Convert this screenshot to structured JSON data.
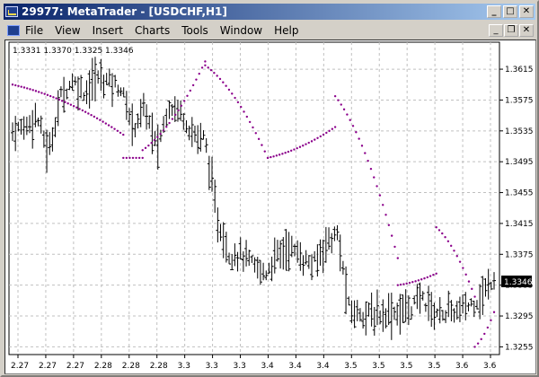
{
  "window": {
    "title": "29977: MetaTrader - [USDCHF,H1]",
    "minimize_glyph": "_",
    "maximize_glyph": "□",
    "close_glyph": "✕"
  },
  "menu": {
    "items": [
      "File",
      "View",
      "Insert",
      "Charts",
      "Tools",
      "Window",
      "Help"
    ],
    "mdi_minimize_glyph": "_",
    "mdi_restore_glyph": "❐",
    "mdi_close_glyph": "✕"
  },
  "colors": {
    "bars": "#000000",
    "sar": "#8b008b",
    "grid": "#c0c0c0",
    "price_tag_bg": "#000000",
    "price_tag_text": "#ffffff"
  },
  "chart_data": {
    "type": "ohlc-with-parabolic-sar",
    "symbol": "USDCHF",
    "timeframe": "H1",
    "ohlc_label": "1.3331 1.3370 1.3325 1.3346",
    "current_price": "1.3346",
    "y_ticks": [
      "1.3615",
      "1.3575",
      "1.3535",
      "1.3495",
      "1.3455",
      "1.3415",
      "1.3375",
      "1.3335",
      "1.3295",
      "1.3255"
    ],
    "y_range": [
      1.3245,
      1.365
    ],
    "x_ticks": [
      "2.27",
      "2.27",
      "2.27",
      "2.28",
      "2.28",
      "2.28",
      "3.3",
      "3.3",
      "3.3",
      "3.4",
      "3.4",
      "3.4",
      "3.5",
      "3.5",
      "3.5",
      "3.5",
      "3.6",
      "3.6"
    ],
    "close_anchor": [
      1.3535,
      1.354,
      1.3555,
      1.3505,
      1.358,
      1.36,
      1.3585,
      1.3605,
      1.36,
      1.359,
      1.354,
      1.3565,
      1.351,
      1.357,
      1.356,
      1.353,
      1.3525,
      1.342,
      1.3375,
      1.3375,
      1.336,
      1.335,
      1.3375,
      1.3385,
      1.337,
      1.336,
      1.339,
      1.34,
      1.33,
      1.33,
      1.3295,
      1.33,
      1.33,
      1.3305,
      1.332,
      1.33,
      1.33,
      1.33,
      1.331,
      1.332,
      1.3346
    ],
    "sar_segments": [
      {
        "from": 0,
        "to": 0.23,
        "start": 1.3595,
        "end": 1.353
      },
      {
        "from": 0.23,
        "to": 0.27,
        "start": 1.35,
        "end": 1.35
      },
      {
        "from": 0.27,
        "to": 0.4,
        "start": 1.351,
        "end": 1.3625
      },
      {
        "from": 0.4,
        "to": 0.53,
        "start": 1.362,
        "end": 1.35
      },
      {
        "from": 0.53,
        "to": 0.67,
        "start": 1.35,
        "end": 1.354
      },
      {
        "from": 0.67,
        "to": 0.8,
        "start": 1.358,
        "end": 1.337
      },
      {
        "from": 0.8,
        "to": 0.88,
        "start": 1.3335,
        "end": 1.335
      },
      {
        "from": 0.88,
        "to": 0.96,
        "start": 1.341,
        "end": 1.332
      },
      {
        "from": 0.96,
        "to": 1.0,
        "start": 1.3255,
        "end": 1.33
      }
    ]
  }
}
